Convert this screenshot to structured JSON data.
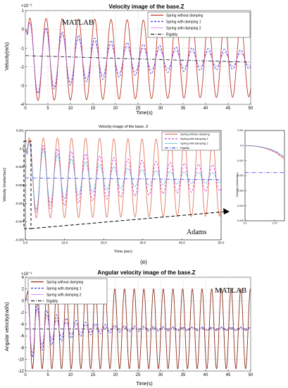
{
  "panel_label": "(e)",
  "chart_data": [
    {
      "id": "p1",
      "type": "line",
      "title": "Velocity image of the base.Z",
      "watermark": "MATLAB",
      "exponent_label": "×10⁻³",
      "xlabel": "Time(s)",
      "ylabel": "Velocity(m/s)",
      "xlim": [
        0,
        50
      ],
      "ylim": [
        -4,
        1
      ],
      "xticks": [
        0,
        5,
        10,
        15,
        20,
        25,
        30,
        35,
        40,
        45,
        50
      ],
      "yticks": [
        -4,
        -3,
        -2,
        -1,
        0,
        1
      ],
      "grid": true,
      "legend_position": "top-right",
      "oscillation": {
        "period": 3.6,
        "equilibrium": -1.6,
        "phase_peak": 1.0
      },
      "series": [
        {
          "name": "Spring without damping",
          "color": "#c0392b",
          "style": "solid",
          "amplitude_start": 2.2,
          "amplitude_end": 2.0,
          "tau": 0,
          "x_start": 0.5,
          "y_start": 0
        },
        {
          "name": "Spring with damping 1",
          "color": "#3a3ad6",
          "style": "dashed",
          "amplitude_start": 2.0,
          "amplitude_end": 0.35,
          "tau": 20,
          "x_start": 0.5,
          "y_start": 0
        },
        {
          "name": "Spring with damping 2",
          "color": "#d070e0",
          "style": "solid-thin",
          "amplitude_start": 2.0,
          "amplitude_end": 0.25,
          "tau": 16,
          "x_start": 0.5,
          "y_start": 0
        },
        {
          "name": "Rigidity",
          "color": "#222222",
          "style": "dashdot",
          "linear": true,
          "x": [
            0,
            50
          ],
          "y": [
            -1.4,
            -1.75
          ]
        }
      ]
    },
    {
      "id": "p2",
      "type": "line",
      "title": "Velocity image of the base. Z",
      "watermark": "Adams",
      "xlabel": "Time (sec)",
      "ylabel": "Velocity (meter/sec)",
      "xlim": [
        0,
        50
      ],
      "ylim": [
        -0.005,
        0.001
      ],
      "xticks": [
        0.0,
        10.0,
        20.0,
        30.0,
        40.0,
        50.0
      ],
      "xtick_labels": [
        "0.0",
        "10.0",
        "20.0",
        "30.0",
        "40.0",
        "50.0"
      ],
      "yticks": [
        0.001,
        0.0,
        -0.001,
        -0.002,
        -0.003,
        -0.004,
        -0.005
      ],
      "ytick_labels": [
        "0.001",
        "0.0",
        "-0.001",
        "-0.002",
        "-0.003",
        "-0.004",
        "-0.005"
      ],
      "grid": false,
      "legend_position": "top-right",
      "oscillation": {
        "period": 3.6,
        "equilibrium": -0.0016,
        "phase_peak": 1.0
      },
      "series": [
        {
          "name": "Spring without damping",
          "color": "#e07a5f",
          "style": "solid",
          "amplitude_start": 0.0022,
          "amplitude_end": 0.0021,
          "tau": 0,
          "x_start": 0.5,
          "y_start": 0
        },
        {
          "name": "Spring with damping 1",
          "color": "#d23cd2",
          "style": "dashed",
          "amplitude_start": 0.002,
          "amplitude_end": 0.0005,
          "tau": 25,
          "x_start": 0.5,
          "y_start": 0
        },
        {
          "name": "Spring with damping 2",
          "color": "#3ab0d0",
          "style": "solid-thin",
          "amplitude_start": 0.002,
          "amplitude_end": 0.0002,
          "tau": 15,
          "x_start": 0.5,
          "y_start": 0
        },
        {
          "name": "Rigidity",
          "color": "#4a4ae0",
          "style": "dashdot",
          "linear": true,
          "x": [
            0,
            50
          ],
          "y": [
            -0.0016,
            -0.0017
          ]
        }
      ]
    },
    {
      "id": "p3",
      "type": "line",
      "title": "",
      "inset_of": "p2",
      "xlabel": "",
      "ylabel": "Velocity (meter/sec)",
      "xlim": [
        0,
        1
      ],
      "ylim": [
        -0.005,
        0.001
      ],
      "xticks": [
        0.0,
        0.75
      ],
      "xtick_labels": [
        "0.0",
        "0.75"
      ],
      "yticks": [
        0.001,
        0.0,
        -0.001,
        -0.002,
        -0.003,
        -0.004,
        -0.005
      ],
      "ytick_labels": [
        "0.001",
        "0.0",
        "-0.001",
        "-0.002",
        "-0.003",
        "-0.004",
        "-0.005"
      ],
      "grid": false,
      "series": [
        {
          "name": "Spring without damping",
          "color": "#e07a5f",
          "style": "solid",
          "x": [
            0,
            0.2,
            0.4,
            0.6,
            0.8,
            1.0
          ],
          "y": [
            0,
            -2e-05,
            -0.0001,
            -0.00025,
            -0.0005,
            -0.0009
          ]
        },
        {
          "name": "Spring with damping 1",
          "color": "#d23cd2",
          "style": "dashed",
          "x": [
            0,
            0.2,
            0.4,
            0.6,
            0.8,
            1.0
          ],
          "y": [
            0,
            -2e-05,
            -9e-05,
            -0.00022,
            -0.00045,
            -0.0008
          ]
        },
        {
          "name": "Spring with damping 2",
          "color": "#3ab0d0",
          "style": "solid-thin",
          "x": [
            0,
            0.2,
            0.4,
            0.6,
            0.8,
            1.0
          ],
          "y": [
            0,
            -2e-05,
            -8e-05,
            -0.0002,
            -0.0004,
            -0.00075
          ]
        },
        {
          "name": "Rigidity",
          "color": "#4a4ae0",
          "style": "dashdot",
          "x": [
            0,
            1.0
          ],
          "y": [
            -0.0018,
            -0.0018
          ]
        }
      ]
    },
    {
      "id": "p4",
      "type": "line",
      "title": "Angular velocity image of the base.Z",
      "watermark": "MATLAB",
      "exponent_label": "×10⁻³",
      "xlabel": "Time(s)",
      "ylabel": "Angular velocity(rad/s)",
      "xlim": [
        0,
        50
      ],
      "ylim": [
        -12,
        4
      ],
      "xticks": [
        0,
        5,
        10,
        15,
        20,
        25,
        30,
        35,
        40,
        45,
        50
      ],
      "yticks": [
        -12,
        -10,
        -8,
        -6,
        -4,
        -2,
        0,
        2,
        4
      ],
      "grid": true,
      "legend_position": "top-left",
      "oscillation": {
        "period": 2.15,
        "equilibrium": -4.8,
        "phase_peak": 0.5
      },
      "series": [
        {
          "name": "Spring without damping",
          "color": "#8b2f1c",
          "style": "solid",
          "amplitude_start": 6.8,
          "amplitude_end": 6.8,
          "tau": 0,
          "x_start": 0.6,
          "y_start": 0
        },
        {
          "name": "Spring with damping 1",
          "color": "#3a3ad6",
          "style": "dashed",
          "amplitude_start": 5.5,
          "amplitude_end": 0.3,
          "tau": 7,
          "x_start": 0.6,
          "y_start": 0
        },
        {
          "name": "Spring with damping 2",
          "color": "#d070e0",
          "style": "solid-thin",
          "amplitude_start": 5.0,
          "amplitude_end": 0.2,
          "tau": 5,
          "x_start": 0.6,
          "y_start": 0
        },
        {
          "name": "Rigidity",
          "color": "#222222",
          "style": "dashdot",
          "linear": true,
          "x": [
            0,
            50
          ],
          "y": [
            -4.8,
            -4.8
          ]
        }
      ]
    }
  ]
}
